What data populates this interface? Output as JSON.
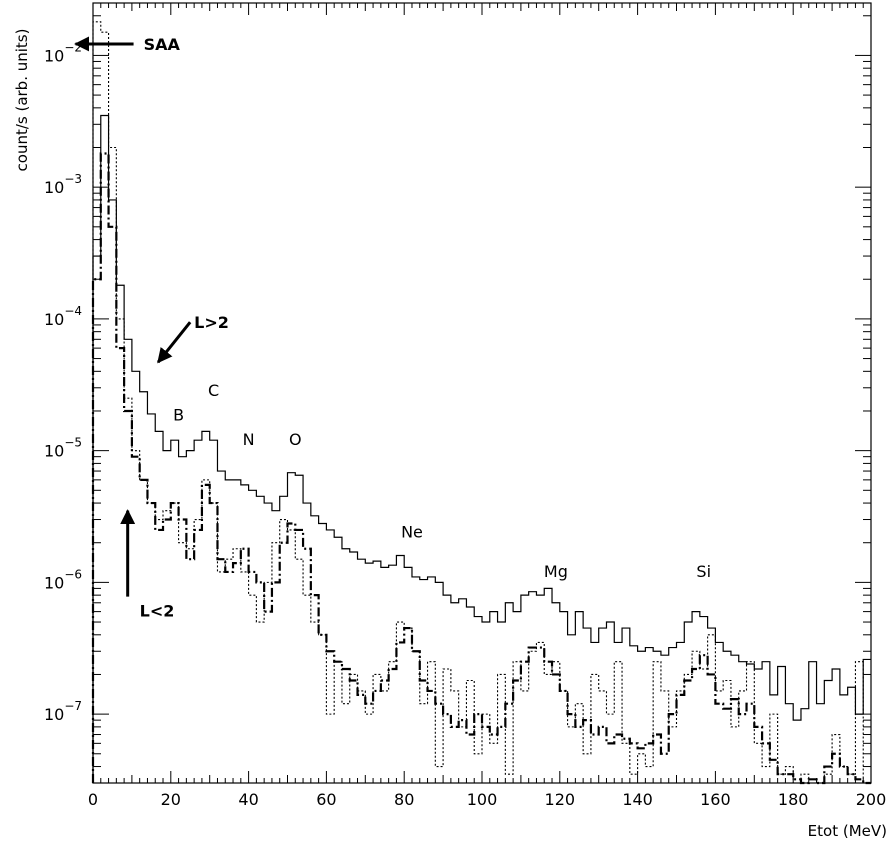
{
  "chart_data": {
    "type": "line",
    "title": "",
    "xlabel": "Etot (MeV)",
    "ylabel": "count/s (arb. units)",
    "xlim": [
      0,
      200
    ],
    "ylim": [
      3e-08,
      0.025
    ],
    "yscale": "log",
    "grid": false,
    "x_ticks": [
      0,
      20,
      40,
      60,
      80,
      100,
      120,
      140,
      160,
      180,
      200
    ],
    "y_ticks": [
      {
        "value": 1e-07,
        "base": "10",
        "exp": "−7"
      },
      {
        "value": 1e-06,
        "base": "10",
        "exp": "−6"
      },
      {
        "value": 1e-05,
        "base": "10",
        "exp": "−5"
      },
      {
        "value": 0.0001,
        "base": "10",
        "exp": "−4"
      },
      {
        "value": 0.001,
        "base": "10",
        "exp": "−3"
      },
      {
        "value": 0.01,
        "base": "10",
        "exp": "−2"
      }
    ],
    "series": [
      {
        "style": "solid",
        "color": "#000000",
        "x": [
          0,
          2,
          4,
          6,
          8,
          10,
          12,
          14,
          16,
          18,
          20,
          22,
          24,
          26,
          28,
          30,
          32,
          34,
          36,
          38,
          40,
          42,
          44,
          46,
          48,
          50,
          52,
          54,
          56,
          58,
          60,
          62,
          64,
          66,
          68,
          70,
          72,
          74,
          76,
          78,
          80,
          82,
          84,
          86,
          88,
          90,
          92,
          94,
          96,
          98,
          100,
          102,
          104,
          106,
          108,
          110,
          112,
          114,
          116,
          118,
          120,
          122,
          124,
          126,
          128,
          130,
          132,
          134,
          136,
          138,
          140,
          142,
          144,
          146,
          148,
          150,
          152,
          154,
          156,
          158,
          160,
          162,
          164,
          166,
          168,
          170,
          172,
          174,
          176,
          178,
          180,
          182,
          184,
          186,
          188,
          190,
          192,
          194,
          196,
          198
        ],
        "y": [
          0.0003,
          0.0035,
          0.0008,
          0.00018,
          7e-05,
          4e-05,
          2.8e-05,
          1.9e-05,
          1.4e-05,
          1e-05,
          1.2e-05,
          9e-06,
          1e-05,
          1.2e-05,
          1.4e-05,
          1.2e-05,
          7e-06,
          6e-06,
          6e-06,
          5.5e-06,
          5e-06,
          4.5e-06,
          4e-06,
          3.5e-06,
          4.5e-06,
          6.8e-06,
          6.5e-06,
          4e-06,
          3.2e-06,
          2.8e-06,
          2.5e-06,
          2.2e-06,
          1.8e-06,
          1.7e-06,
          1.5e-06,
          1.4e-06,
          1.45e-06,
          1.3e-06,
          1.35e-06,
          1.6e-06,
          1.3e-06,
          1.1e-06,
          1.05e-06,
          1.1e-06,
          1e-06,
          8e-07,
          7e-07,
          7.5e-07,
          6.5e-07,
          5.5e-07,
          5e-07,
          6e-07,
          5e-07,
          7e-07,
          6e-07,
          8e-07,
          8.5e-07,
          8e-07,
          9e-07,
          7e-07,
          6e-07,
          4e-07,
          6e-07,
          4.5e-07,
          3.5e-07,
          4.5e-07,
          5e-07,
          3.5e-07,
          4.5e-07,
          3.3e-07,
          3e-07,
          3.2e-07,
          3e-07,
          2.8e-07,
          3.2e-07,
          3.5e-07,
          5e-07,
          6e-07,
          5.5e-07,
          4.5e-07,
          3.5e-07,
          3e-07,
          2.8e-07,
          2.5e-07,
          2.4e-07,
          2.2e-07,
          2.5e-07,
          1.4e-07,
          2.3e-07,
          1.2e-07,
          9e-08,
          1.1e-07,
          2.5e-07,
          1.2e-07,
          1.8e-07,
          2.2e-07,
          1.4e-07,
          1.6e-07,
          1e-07,
          2.6e-07
        ]
      },
      {
        "style": "dashdot",
        "color": "#000000",
        "x": [
          0,
          2,
          4,
          6,
          8,
          10,
          12,
          14,
          16,
          18,
          20,
          22,
          24,
          26,
          28,
          30,
          32,
          34,
          36,
          38,
          40,
          42,
          44,
          46,
          48,
          50,
          52,
          54,
          56,
          58,
          60,
          62,
          64,
          66,
          68,
          70,
          72,
          74,
          76,
          78,
          80,
          82,
          84,
          86,
          88,
          90,
          92,
          94,
          96,
          98,
          100,
          102,
          104,
          106,
          108,
          110,
          112,
          114,
          116,
          118,
          120,
          122,
          124,
          126,
          128,
          130,
          132,
          134,
          136,
          138,
          140,
          142,
          144,
          146,
          148,
          150,
          152,
          154,
          156,
          158,
          160,
          162,
          164,
          166,
          168,
          170,
          172,
          174,
          176,
          178,
          180,
          182,
          184,
          186,
          188,
          190,
          192,
          194,
          196,
          198
        ],
        "y": [
          0.0002,
          0.0018,
          0.0005,
          6e-05,
          2e-05,
          9e-06,
          6e-06,
          4e-06,
          2.5e-06,
          3e-06,
          4e-06,
          3e-06,
          1.5e-06,
          2.5e-06,
          5.5e-06,
          4e-06,
          1.5e-06,
          1.2e-06,
          1.4e-06,
          1.8e-06,
          1.2e-06,
          1e-06,
          6e-07,
          1e-06,
          2e-06,
          2.8e-06,
          2.5e-06,
          1.8e-06,
          8e-07,
          4e-07,
          3e-07,
          2.5e-07,
          2.2e-07,
          1.8e-07,
          1.4e-07,
          1.2e-07,
          1.5e-07,
          1.8e-07,
          2.2e-07,
          3.5e-07,
          4.5e-07,
          3e-07,
          1.8e-07,
          1.5e-07,
          1.2e-07,
          1e-07,
          8e-08,
          9e-08,
          7e-08,
          1e-07,
          8e-08,
          7e-08,
          8e-08,
          1.2e-07,
          1.8e-07,
          2.5e-07,
          3.2e-07,
          3.2e-07,
          2.5e-07,
          2e-07,
          1.5e-07,
          1e-07,
          8e-08,
          9e-08,
          7e-08,
          8e-08,
          6e-08,
          7e-08,
          6.5e-08,
          6e-08,
          5.5e-08,
          6e-08,
          7e-08,
          5e-08,
          1e-07,
          1.4e-07,
          1.8e-07,
          2.2e-07,
          2.8e-07,
          2e-07,
          1.2e-07,
          1.1e-07,
          1.3e-07,
          1e-07,
          1.2e-07,
          8e-08,
          6e-08,
          4.5e-08,
          3.5e-08,
          3.5e-08,
          3.2e-08,
          3e-08,
          3.2e-08,
          3e-08,
          4e-08,
          5e-08,
          4e-08,
          3.5e-08,
          3.2e-08,
          3e-08
        ]
      },
      {
        "style": "dotted",
        "color": "#000000",
        "x": [
          0,
          2,
          4,
          6,
          8,
          10,
          12,
          14,
          16,
          18,
          20,
          22,
          24,
          26,
          28,
          30,
          32,
          34,
          36,
          38,
          40,
          42,
          44,
          46,
          48,
          50,
          52,
          54,
          56,
          58,
          60,
          62,
          64,
          66,
          68,
          70,
          72,
          74,
          76,
          78,
          80,
          82,
          84,
          86,
          88,
          90,
          92,
          94,
          96,
          98,
          100,
          102,
          104,
          106,
          108,
          110,
          112,
          114,
          116,
          118,
          120,
          122,
          124,
          126,
          128,
          130,
          132,
          134,
          136,
          138,
          140,
          142,
          144,
          146,
          148,
          150,
          152,
          154,
          156,
          158,
          160,
          162,
          164,
          166,
          168,
          170,
          172,
          174,
          176,
          178,
          180,
          182,
          184,
          186,
          188,
          190,
          192,
          194,
          196,
          198
        ],
        "y": [
          0.018,
          0.015,
          0.002,
          0.0001,
          2.5e-05,
          1e-05,
          6e-06,
          4e-06,
          3e-06,
          3.5e-06,
          4e-06,
          2e-06,
          1.8e-06,
          3e-06,
          6e-06,
          4e-06,
          1.2e-06,
          1.5e-06,
          1.8e-06,
          1.2e-06,
          8e-07,
          5e-07,
          1e-06,
          2e-06,
          3e-06,
          2.5e-06,
          1.5e-06,
          8e-07,
          5e-07,
          4e-07,
          1e-07,
          2.5e-07,
          1.2e-07,
          2e-07,
          1.5e-07,
          1e-07,
          2e-07,
          1.5e-07,
          2.5e-07,
          5e-07,
          4.5e-07,
          3e-07,
          1.2e-07,
          2.5e-07,
          4e-08,
          2.2e-07,
          1.5e-07,
          8e-08,
          1.8e-07,
          5e-08,
          1e-07,
          6e-08,
          2e-07,
          3.5e-08,
          2.5e-07,
          1.5e-07,
          3e-07,
          3.5e-07,
          2e-07,
          2.5e-07,
          1.5e-07,
          8e-08,
          1.2e-07,
          5e-08,
          2e-07,
          1.5e-07,
          1e-07,
          2.5e-07,
          6e-08,
          3.5e-08,
          5e-08,
          4e-08,
          2.5e-07,
          1.5e-07,
          8e-08,
          1.5e-07,
          2e-07,
          3e-07,
          2.2e-07,
          4e-07,
          1.5e-07,
          1.8e-07,
          8e-08,
          1.5e-07,
          2.5e-07,
          6e-08,
          4e-08,
          1e-07,
          3.5e-08,
          4e-08,
          3e-08,
          3.5e-08,
          3.2e-08,
          3e-08,
          3.5e-08,
          7e-08,
          4e-08,
          3.5e-08,
          2.5e-07,
          3e-08
        ]
      }
    ],
    "annotations": [
      {
        "text": "SAA",
        "bold": true,
        "arrow": true,
        "x": 13,
        "y": 0.011
      },
      {
        "text": "L>2",
        "bold": true,
        "arrow": true,
        "x": 26,
        "y": 8.5e-05
      },
      {
        "text": "L<2",
        "bold": true,
        "arrow": true,
        "x": 12,
        "y": 5.5e-07
      },
      {
        "text": "B",
        "bold": false,
        "arrow": false,
        "x": 22,
        "y": 1.7e-05
      },
      {
        "text": "C",
        "bold": false,
        "arrow": false,
        "x": 31,
        "y": 2.6e-05
      },
      {
        "text": "N",
        "bold": false,
        "arrow": false,
        "x": 40,
        "y": 1.1e-05
      },
      {
        "text": "O",
        "bold": false,
        "arrow": false,
        "x": 52,
        "y": 1.1e-05
      },
      {
        "text": "Ne",
        "bold": false,
        "arrow": false,
        "x": 82,
        "y": 2.2e-06
      },
      {
        "text": "Mg",
        "bold": false,
        "arrow": false,
        "x": 119,
        "y": 1.1e-06
      },
      {
        "text": "Si",
        "bold": false,
        "arrow": false,
        "x": 157,
        "y": 1.1e-06
      }
    ]
  }
}
